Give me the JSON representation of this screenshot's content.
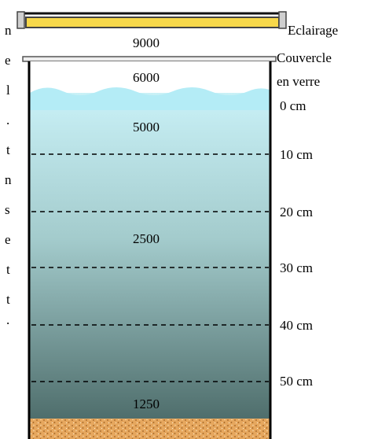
{
  "labels": {
    "lighting": "Eclairage",
    "lid_line1": "Couvercle",
    "lid_line2": "en verre"
  },
  "depth_marks": [
    "0 cm",
    "10 cm",
    "20 cm",
    "30 cm",
    "40 cm",
    "50 cm"
  ],
  "lux_values": [
    "9000",
    "6000",
    "5000",
    "2500",
    "1250"
  ],
  "left_text_fragments": [
    "n",
    "e",
    "l",
    ".",
    "t",
    "n",
    "s",
    "e",
    "t",
    "t",
    "."
  ],
  "colors": {
    "lamp_fill": "#f7d84a",
    "lamp_frame": "#444444",
    "water_top": "#c9f1f7",
    "water_mid": "#9fc4c6",
    "water_bottom": "#4f6e6c",
    "wave": "#b4ecf6",
    "sand": "#e6a75e",
    "sand_dot": "#9a5e22"
  }
}
